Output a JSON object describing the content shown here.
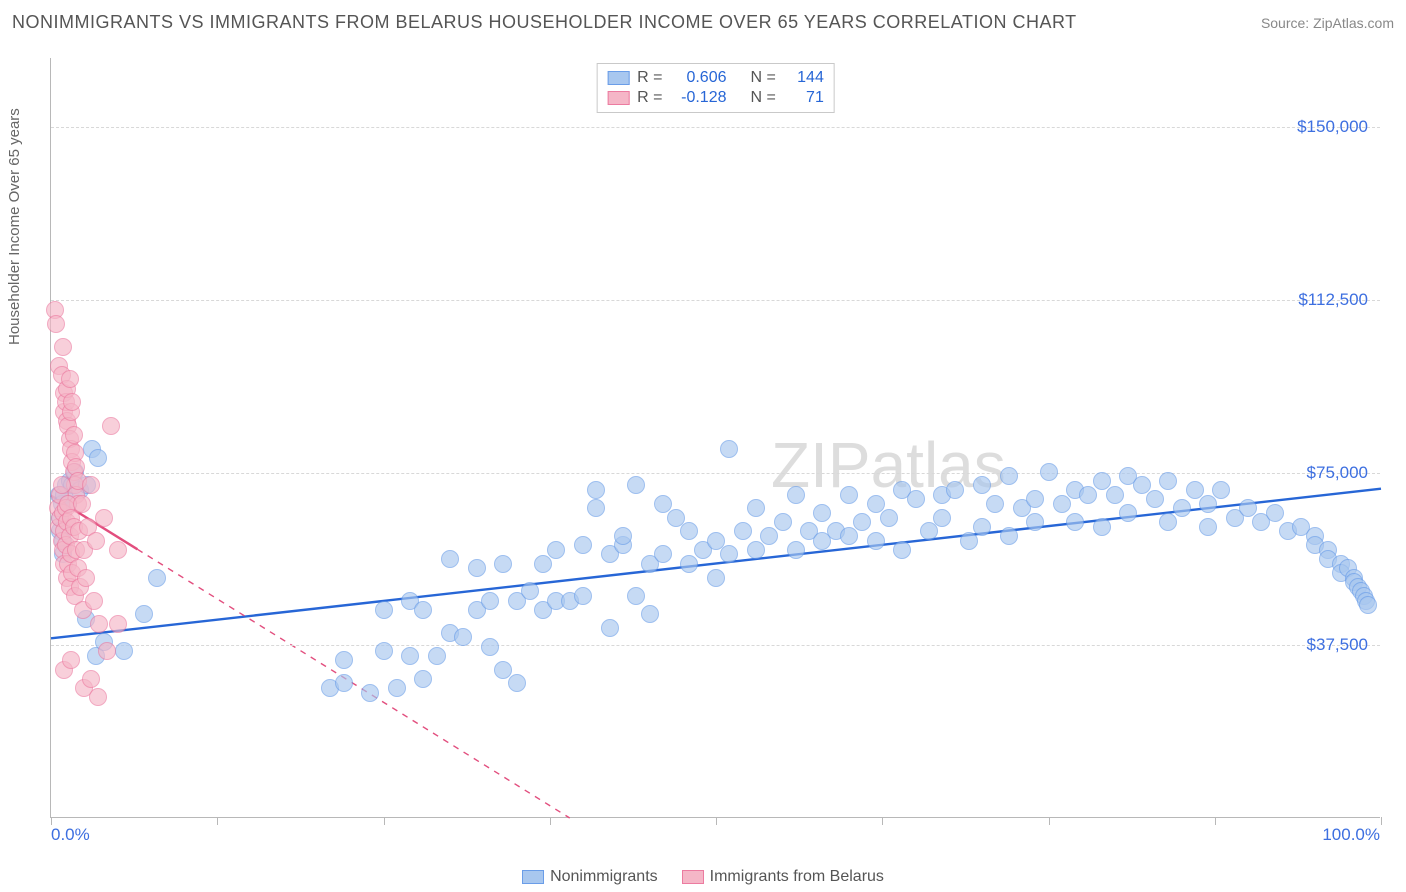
{
  "title": "NONIMMIGRANTS VS IMMIGRANTS FROM BELARUS HOUSEHOLDER INCOME OVER 65 YEARS CORRELATION CHART",
  "source_label": "Source: ZipAtlas.com",
  "ylabel": "Householder Income Over 65 years",
  "watermark": "ZIPatlas",
  "chart": {
    "type": "scatter",
    "xlim": [
      0,
      100
    ],
    "ylim": [
      0,
      165000
    ],
    "y_gridlines": [
      37500,
      75000,
      112500,
      150000
    ],
    "y_tick_labels": [
      "$37,500",
      "$75,000",
      "$112,500",
      "$150,000"
    ],
    "x_tick_positions": [
      0,
      12.5,
      25,
      37.5,
      50,
      62.5,
      75,
      87.5,
      100
    ],
    "x_axis_min_label": "0.0%",
    "x_axis_max_label": "100.0%",
    "background_color": "#ffffff",
    "grid_color": "#d8d8d8",
    "axis_color": "#b8b8b8",
    "marker_radius": 9,
    "marker_border_width": 1.2,
    "trend_line_width": 2.4,
    "series": [
      {
        "name": "Nonimmigrants",
        "fill_color": "#a8c7ef",
        "fill_opacity": 0.65,
        "stroke_color": "#6a9de8",
        "trend_color": "#2766d6",
        "R": "0.606",
        "N": "144",
        "trend": {
          "x1": 0,
          "y1": 39000,
          "x2": 100,
          "y2": 71500,
          "dash_from_x": 100
        },
        "points": [
          [
            0.6,
            70000
          ],
          [
            0.8,
            68000
          ],
          [
            0.7,
            65000
          ],
          [
            0.7,
            62000
          ],
          [
            0.9,
            60000
          ],
          [
            0.9,
            57000
          ],
          [
            1.0,
            70000
          ],
          [
            1.1,
            72000
          ],
          [
            1.3,
            68000
          ],
          [
            1.4,
            73000
          ],
          [
            1.6,
            72000
          ],
          [
            1.8,
            75000
          ],
          [
            2.2,
            71000
          ],
          [
            2.7,
            72000
          ],
          [
            3.1,
            80000
          ],
          [
            3.5,
            78000
          ],
          [
            2.6,
            43000
          ],
          [
            3.4,
            35000
          ],
          [
            4.0,
            38000
          ],
          [
            5.5,
            36000
          ],
          [
            7.0,
            44000
          ],
          [
            8.0,
            52000
          ],
          [
            21,
            28000
          ],
          [
            22,
            29000
          ],
          [
            22,
            34000
          ],
          [
            24,
            27000
          ],
          [
            25,
            36000
          ],
          [
            25,
            45000
          ],
          [
            26,
            28000
          ],
          [
            27,
            47000
          ],
          [
            27,
            35000
          ],
          [
            28,
            30000
          ],
          [
            28,
            45000
          ],
          [
            29,
            35000
          ],
          [
            30,
            56000
          ],
          [
            30,
            40000
          ],
          [
            31,
            39000
          ],
          [
            32,
            54000
          ],
          [
            32,
            45000
          ],
          [
            33,
            47000
          ],
          [
            33,
            37000
          ],
          [
            34,
            32000
          ],
          [
            34,
            55000
          ],
          [
            35,
            47000
          ],
          [
            35,
            29000
          ],
          [
            36,
            49000
          ],
          [
            37,
            55000
          ],
          [
            37,
            45000
          ],
          [
            38,
            58000
          ],
          [
            38,
            47000
          ],
          [
            39,
            47000
          ],
          [
            40,
            59000
          ],
          [
            40,
            48000
          ],
          [
            41,
            67000
          ],
          [
            41,
            71000
          ],
          [
            42,
            41000
          ],
          [
            42,
            57000
          ],
          [
            43,
            59000
          ],
          [
            43,
            61000
          ],
          [
            44,
            48000
          ],
          [
            44,
            72000
          ],
          [
            45,
            55000
          ],
          [
            45,
            44000
          ],
          [
            46,
            57000
          ],
          [
            46,
            68000
          ],
          [
            47,
            65000
          ],
          [
            48,
            55000
          ],
          [
            48,
            62000
          ],
          [
            49,
            58000
          ],
          [
            50,
            60000
          ],
          [
            50,
            52000
          ],
          [
            51,
            57000
          ],
          [
            51,
            80000
          ],
          [
            52,
            62000
          ],
          [
            53,
            58000
          ],
          [
            53,
            67000
          ],
          [
            54,
            61000
          ],
          [
            55,
            64000
          ],
          [
            56,
            58000
          ],
          [
            56,
            70000
          ],
          [
            57,
            62000
          ],
          [
            58,
            66000
          ],
          [
            58,
            60000
          ],
          [
            59,
            62000
          ],
          [
            60,
            61000
          ],
          [
            60,
            70000
          ],
          [
            61,
            64000
          ],
          [
            62,
            68000
          ],
          [
            62,
            60000
          ],
          [
            63,
            65000
          ],
          [
            64,
            58000
          ],
          [
            64,
            71000
          ],
          [
            65,
            69000
          ],
          [
            66,
            62000
          ],
          [
            67,
            70000
          ],
          [
            67,
            65000
          ],
          [
            68,
            71000
          ],
          [
            69,
            60000
          ],
          [
            70,
            72000
          ],
          [
            70,
            63000
          ],
          [
            71,
            68000
          ],
          [
            72,
            74000
          ],
          [
            72,
            61000
          ],
          [
            73,
            67000
          ],
          [
            74,
            69000
          ],
          [
            74,
            64000
          ],
          [
            75,
            75000
          ],
          [
            76,
            68000
          ],
          [
            77,
            71000
          ],
          [
            77,
            64000
          ],
          [
            78,
            70000
          ],
          [
            79,
            73000
          ],
          [
            79,
            63000
          ],
          [
            80,
            70000
          ],
          [
            81,
            74000
          ],
          [
            81,
            66000
          ],
          [
            82,
            72000
          ],
          [
            83,
            69000
          ],
          [
            84,
            64000
          ],
          [
            84,
            73000
          ],
          [
            85,
            67000
          ],
          [
            86,
            71000
          ],
          [
            87,
            68000
          ],
          [
            87,
            63000
          ],
          [
            88,
            71000
          ],
          [
            89,
            65000
          ],
          [
            90,
            67000
          ],
          [
            91,
            64000
          ],
          [
            92,
            66000
          ],
          [
            93,
            62000
          ],
          [
            94,
            63000
          ],
          [
            95,
            61000
          ],
          [
            95,
            59000
          ],
          [
            96,
            58000
          ],
          [
            96,
            56000
          ],
          [
            97,
            55000
          ],
          [
            97,
            53000
          ],
          [
            97.5,
            54000
          ],
          [
            98,
            52000
          ],
          [
            98,
            51000
          ],
          [
            98.3,
            50000
          ],
          [
            98.5,
            49000
          ],
          [
            98.7,
            48000
          ],
          [
            98.9,
            47000
          ],
          [
            99,
            46000
          ]
        ]
      },
      {
        "name": "Immigrants from Belarus",
        "fill_color": "#f5b6c7",
        "fill_opacity": 0.65,
        "stroke_color": "#ec7ba0",
        "trend_color": "#e24e7e",
        "R": "-0.128",
        "N": "71",
        "trend": {
          "x1": 0,
          "y1": 70000,
          "x2": 39,
          "y2": 0,
          "dash_from_x": 6.5
        },
        "points": [
          [
            0.3,
            110000
          ],
          [
            0.4,
            107000
          ],
          [
            0.6,
            98000
          ],
          [
            0.8,
            96000
          ],
          [
            0.9,
            102000
          ],
          [
            1.0,
            92000
          ],
          [
            1.0,
            88000
          ],
          [
            1.1,
            90000
          ],
          [
            1.2,
            86000
          ],
          [
            1.2,
            93000
          ],
          [
            1.3,
            85000
          ],
          [
            1.4,
            95000
          ],
          [
            1.4,
            82000
          ],
          [
            1.5,
            88000
          ],
          [
            1.5,
            80000
          ],
          [
            1.6,
            90000
          ],
          [
            1.6,
            77000
          ],
          [
            1.7,
            83000
          ],
          [
            1.7,
            75000
          ],
          [
            1.8,
            79000
          ],
          [
            1.8,
            72000
          ],
          [
            1.9,
            76000
          ],
          [
            1.9,
            70000
          ],
          [
            2.0,
            73000
          ],
          [
            2.0,
            68000
          ],
          [
            0.5,
            67000
          ],
          [
            0.6,
            63000
          ],
          [
            0.7,
            70000
          ],
          [
            0.7,
            65000
          ],
          [
            0.8,
            60000
          ],
          [
            0.8,
            72000
          ],
          [
            0.9,
            66000
          ],
          [
            0.9,
            58000
          ],
          [
            1.0,
            62000
          ],
          [
            1.0,
            55000
          ],
          [
            1.1,
            67000
          ],
          [
            1.1,
            59000
          ],
          [
            1.2,
            64000
          ],
          [
            1.2,
            52000
          ],
          [
            1.3,
            68000
          ],
          [
            1.3,
            55000
          ],
          [
            1.4,
            61000
          ],
          [
            1.4,
            50000
          ],
          [
            1.5,
            65000
          ],
          [
            1.5,
            57000
          ],
          [
            1.6,
            53000
          ],
          [
            1.7,
            63000
          ],
          [
            1.8,
            48000
          ],
          [
            1.9,
            58000
          ],
          [
            2.0,
            54000
          ],
          [
            2.1,
            62000
          ],
          [
            2.2,
            50000
          ],
          [
            2.3,
            68000
          ],
          [
            2.4,
            45000
          ],
          [
            2.5,
            58000
          ],
          [
            2.6,
            52000
          ],
          [
            2.8,
            63000
          ],
          [
            3.0,
            72000
          ],
          [
            3.2,
            47000
          ],
          [
            3.4,
            60000
          ],
          [
            3.6,
            42000
          ],
          [
            4.0,
            65000
          ],
          [
            4.5,
            85000
          ],
          [
            5.0,
            58000
          ],
          [
            1.0,
            32000
          ],
          [
            1.5,
            34000
          ],
          [
            2.5,
            28000
          ],
          [
            3.0,
            30000
          ],
          [
            3.5,
            26000
          ],
          [
            4.2,
            36000
          ],
          [
            5.0,
            42000
          ]
        ]
      }
    ]
  },
  "legend_top": {
    "r_prefix": "R =",
    "n_prefix": "N ="
  },
  "legend_bottom": [
    {
      "label": "Nonimmigrants",
      "series_index": 0
    },
    {
      "label": "Immigrants from Belarus",
      "series_index": 1
    }
  ]
}
